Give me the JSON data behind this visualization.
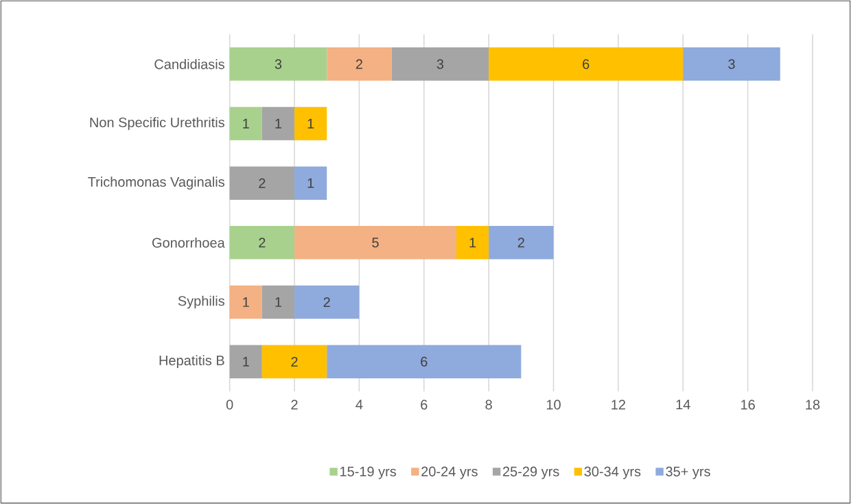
{
  "chart_data": {
    "type": "bar",
    "orientation": "horizontal",
    "stacked": true,
    "categories": [
      "Candidiasis",
      "Non Specific Urethritis",
      "Trichomonas Vaginalis",
      "Gonorrhoea",
      "Syphilis",
      "Hepatitis B"
    ],
    "series": [
      {
        "name": "15-19 yrs",
        "color": "#a9d18e",
        "values": [
          3,
          1,
          null,
          2,
          null,
          null
        ]
      },
      {
        "name": "20-24 yrs",
        "color": "#f4b183",
        "values": [
          2,
          null,
          null,
          5,
          1,
          null
        ]
      },
      {
        "name": "25-29 yrs",
        "color": "#a5a5a5",
        "values": [
          3,
          1,
          2,
          null,
          1,
          1
        ]
      },
      {
        "name": "30-34 yrs",
        "color": "#ffc000",
        "values": [
          6,
          1,
          null,
          1,
          null,
          2
        ]
      },
      {
        "name": "35+ yrs",
        "color": "#8faadc",
        "values": [
          3,
          null,
          1,
          2,
          2,
          6
        ]
      }
    ],
    "xlim": [
      0,
      18
    ],
    "xticks": [
      0,
      2,
      4,
      6,
      8,
      10,
      12,
      14,
      16,
      18
    ],
    "data_labels": true,
    "grid": "x",
    "legend": "bottom"
  }
}
